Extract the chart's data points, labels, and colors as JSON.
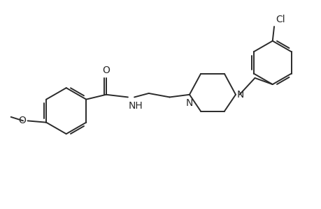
{
  "background_color": "#ffffff",
  "line_color": "#2a2a2a",
  "line_width": 1.4,
  "fig_width": 4.6,
  "fig_height": 3.0,
  "dpi": 100,
  "xlim": [
    0,
    10
  ],
  "ylim": [
    0,
    6.5
  ]
}
